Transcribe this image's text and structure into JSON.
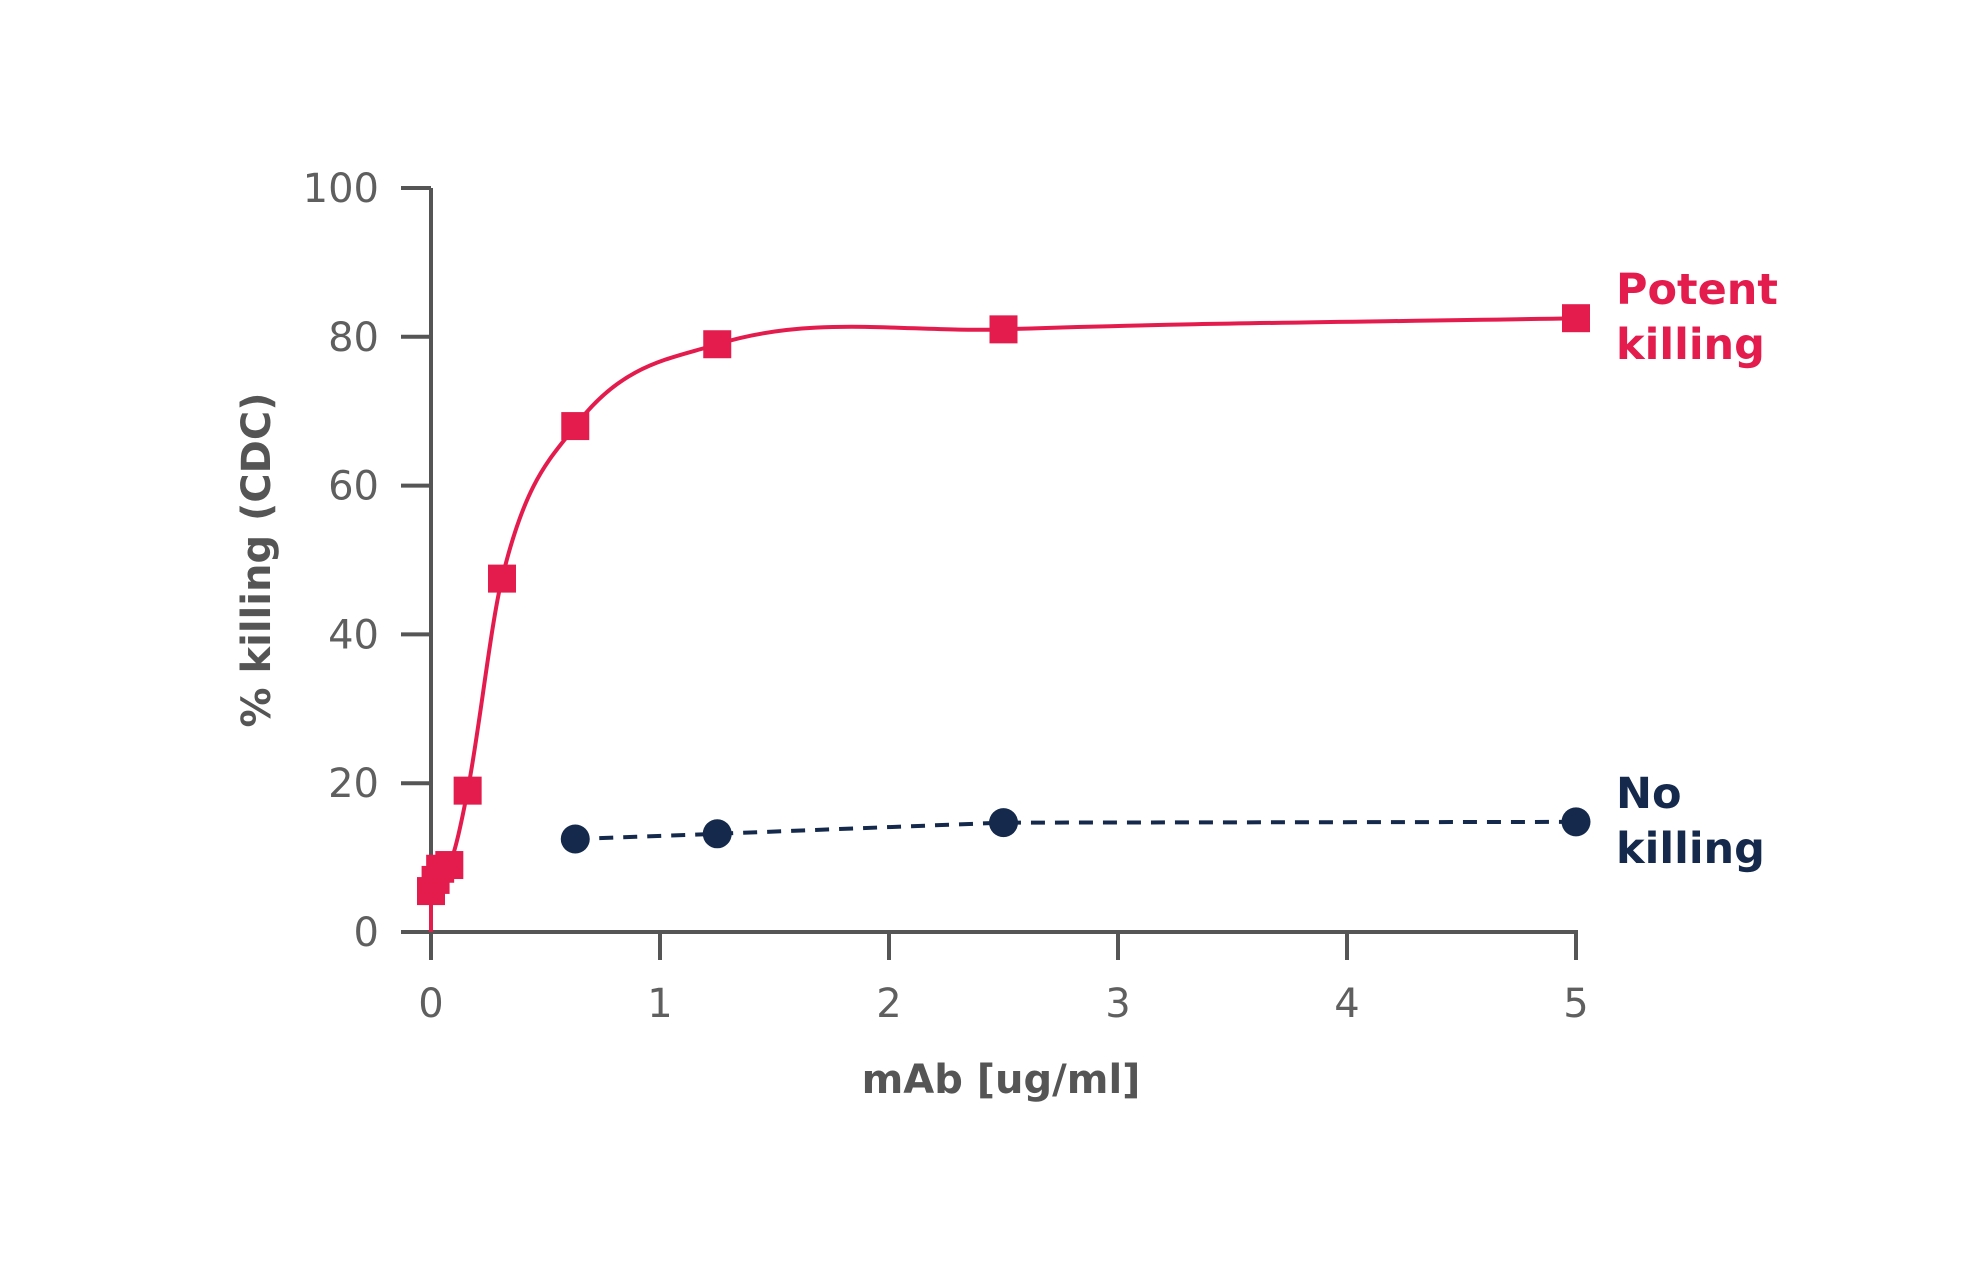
{
  "chart_data": {
    "type": "scatter",
    "xlabel": "mAb [ug/ml]",
    "ylabel": "% killing (CDC)",
    "xlim": [
      0,
      5
    ],
    "ylim": [
      0,
      100
    ],
    "xticks": [
      "0",
      "1",
      "2",
      "3",
      "4",
      "5"
    ],
    "yticks": [
      "0",
      "20",
      "40",
      "60",
      "80",
      "100"
    ],
    "grid": false,
    "series": [
      {
        "name": "Potent killing",
        "label_lines": [
          "Potent",
          "killing"
        ],
        "color": "#e31c4d",
        "marker": "square",
        "line": "solid fitted curve",
        "x": [
          0.0,
          0.02,
          0.04,
          0.08,
          0.16,
          0.31,
          0.63,
          1.25,
          2.5,
          5.0
        ],
        "y": [
          5.5,
          7.0,
          8.5,
          9.0,
          19.0,
          47.5,
          68.0,
          79.0,
          81.0,
          82.5
        ]
      },
      {
        "name": "No killing",
        "label_lines": [
          "No",
          "killing"
        ],
        "color": "#14294b",
        "marker": "circle",
        "line": "dashed",
        "x": [
          0.63,
          1.25,
          2.5,
          5.0
        ],
        "y": [
          12.5,
          13.2,
          14.7,
          14.8
        ]
      }
    ]
  }
}
